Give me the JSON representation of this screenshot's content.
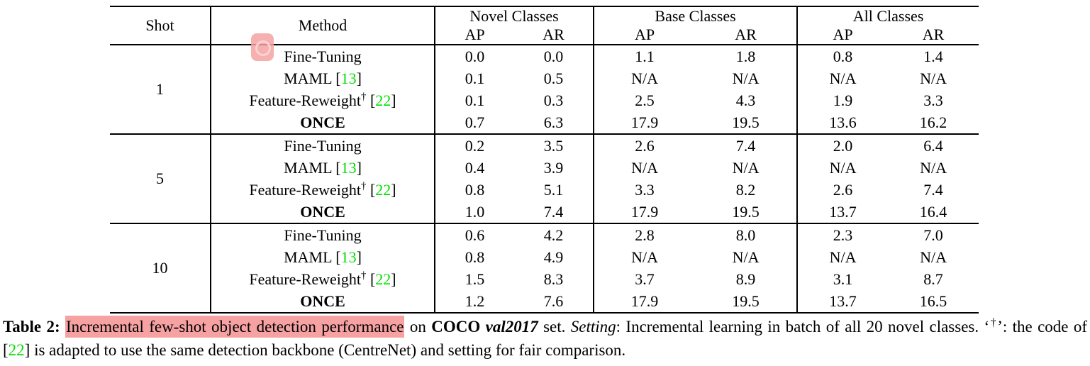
{
  "colors": {
    "citation_green": "#00dd00",
    "highlight_pink": "#f7a2a2",
    "marker_pink": "#f6a2a2",
    "rule_black": "#000000"
  },
  "table": {
    "header": {
      "shot_label": "Shot",
      "method_label": "Method",
      "group_labels": [
        "Novel Classes",
        "Base Classes",
        "All Classes"
      ],
      "sub_labels": [
        "AP",
        "AR",
        "AP",
        "AR",
        "AP",
        "AR"
      ]
    },
    "groups": [
      {
        "shot": "1",
        "rows": [
          {
            "method": [
              {
                "t": "Fine-Tuning",
                "s": "n"
              }
            ],
            "values": [
              {
                "t": "0.0"
              },
              {
                "t": "0.0"
              },
              {
                "t": "1.1"
              },
              {
                "t": "1.8"
              },
              {
                "t": "0.8"
              },
              {
                "t": "1.4"
              }
            ]
          },
          {
            "method": [
              {
                "t": "MAML [",
                "s": "n"
              },
              {
                "t": "13",
                "s": "g"
              },
              {
                "t": "]",
                "s": "n"
              }
            ],
            "values": [
              {
                "t": "0.1"
              },
              {
                "t": "0.5"
              },
              {
                "t": "N/A"
              },
              {
                "t": "N/A"
              },
              {
                "t": "N/A"
              },
              {
                "t": "N/A"
              }
            ]
          },
          {
            "method": [
              {
                "t": "Feature-Reweight",
                "s": "n"
              },
              {
                "t": "†",
                "s": "sup"
              },
              {
                "t": " [",
                "s": "n"
              },
              {
                "t": "22",
                "s": "g"
              },
              {
                "t": "]",
                "s": "n"
              }
            ],
            "values": [
              {
                "t": "0.1"
              },
              {
                "t": "0.3"
              },
              {
                "t": "2.5"
              },
              {
                "t": "4.3"
              },
              {
                "t": "1.9"
              },
              {
                "t": "3.3"
              }
            ]
          },
          {
            "method": [
              {
                "t": "ONCE",
                "s": "b"
              }
            ],
            "values": [
              {
                "t": "0.7",
                "b": true
              },
              {
                "t": "6.3",
                "b": true
              },
              {
                "t": "17.9",
                "b": true
              },
              {
                "t": "19.5",
                "b": true
              },
              {
                "t": "13.6",
                "b": true
              },
              {
                "t": "16.2",
                "b": true
              }
            ]
          }
        ]
      },
      {
        "shot": "5",
        "rows": [
          {
            "method": [
              {
                "t": "Fine-Tuning",
                "s": "n"
              }
            ],
            "values": [
              {
                "t": "0.2"
              },
              {
                "t": "3.5"
              },
              {
                "t": "2.6"
              },
              {
                "t": "7.4"
              },
              {
                "t": "2.0"
              },
              {
                "t": "6.4"
              }
            ]
          },
          {
            "method": [
              {
                "t": "MAML [",
                "s": "n"
              },
              {
                "t": "13",
                "s": "g"
              },
              {
                "t": "]",
                "s": "n"
              }
            ],
            "values": [
              {
                "t": "0.4"
              },
              {
                "t": "3.9"
              },
              {
                "t": "N/A"
              },
              {
                "t": "N/A"
              },
              {
                "t": "N/A"
              },
              {
                "t": "N/A"
              }
            ]
          },
          {
            "method": [
              {
                "t": "Feature-Reweight",
                "s": "n"
              },
              {
                "t": "†",
                "s": "sup"
              },
              {
                "t": " [",
                "s": "n"
              },
              {
                "t": "22",
                "s": "g"
              },
              {
                "t": "]",
                "s": "n"
              }
            ],
            "values": [
              {
                "t": "0.8"
              },
              {
                "t": "5.1"
              },
              {
                "t": "3.3"
              },
              {
                "t": "8.2"
              },
              {
                "t": "2.6"
              },
              {
                "t": "7.4"
              }
            ]
          },
          {
            "method": [
              {
                "t": "ONCE",
                "s": "b"
              }
            ],
            "values": [
              {
                "t": "1.0",
                "b": true
              },
              {
                "t": "7.4",
                "b": true
              },
              {
                "t": "17.9",
                "b": true
              },
              {
                "t": "19.5",
                "b": true
              },
              {
                "t": "13.7",
                "b": true
              },
              {
                "t": "16.4",
                "b": true
              }
            ]
          }
        ]
      },
      {
        "shot": "10",
        "rows": [
          {
            "method": [
              {
                "t": "Fine-Tuning",
                "s": "n"
              }
            ],
            "values": [
              {
                "t": "0.6"
              },
              {
                "t": "4.2"
              },
              {
                "t": "2.8"
              },
              {
                "t": "8.0"
              },
              {
                "t": "2.3"
              },
              {
                "t": "7.0"
              }
            ]
          },
          {
            "method": [
              {
                "t": "MAML [",
                "s": "n"
              },
              {
                "t": "13",
                "s": "g"
              },
              {
                "t": "]",
                "s": "n"
              }
            ],
            "values": [
              {
                "t": "0.8"
              },
              {
                "t": "4.9"
              },
              {
                "t": "N/A"
              },
              {
                "t": "N/A"
              },
              {
                "t": "N/A"
              },
              {
                "t": "N/A"
              }
            ]
          },
          {
            "method": [
              {
                "t": "Feature-Reweight",
                "s": "n"
              },
              {
                "t": "†",
                "s": "sup"
              },
              {
                "t": " [",
                "s": "n"
              },
              {
                "t": "22",
                "s": "g"
              },
              {
                "t": "]",
                "s": "n"
              }
            ],
            "values": [
              {
                "t": "1.5",
                "b": true
              },
              {
                "t": "8.3",
                "b": true
              },
              {
                "t": "3.7"
              },
              {
                "t": "8.9"
              },
              {
                "t": "3.1"
              },
              {
                "t": "8.7"
              }
            ]
          },
          {
            "method": [
              {
                "t": "ONCE",
                "s": "b"
              }
            ],
            "values": [
              {
                "t": "1.2"
              },
              {
                "t": "7.6"
              },
              {
                "t": "17.9",
                "b": true
              },
              {
                "t": "19.5",
                "b": true
              },
              {
                "t": "13.7",
                "b": true
              },
              {
                "t": "16.5",
                "b": true
              }
            ]
          }
        ]
      }
    ]
  },
  "caption": {
    "segments": [
      {
        "t": "Table 2: ",
        "s": "b"
      },
      {
        "t": "Incremental few-shot object detection performance",
        "s": "hl"
      },
      {
        "t": " on ",
        "s": "n"
      },
      {
        "t": "COCO",
        "s": "b"
      },
      {
        "t": " ",
        "s": "n"
      },
      {
        "t": "val2017",
        "s": "bi"
      },
      {
        "t": " set. ",
        "s": "n"
      },
      {
        "t": "Setting",
        "s": "i"
      },
      {
        "t": ": Incremental learning in batch of all 20 novel classes. ‘",
        "s": "n"
      },
      {
        "t": "†",
        "s": "sup"
      },
      {
        "t": "’: the code of [",
        "s": "n"
      },
      {
        "t": "22",
        "s": "g"
      },
      {
        "t": "] is adapted to use the same detection backbone (CentreNet) and setting for fair comparison.",
        "s": "n"
      }
    ]
  }
}
